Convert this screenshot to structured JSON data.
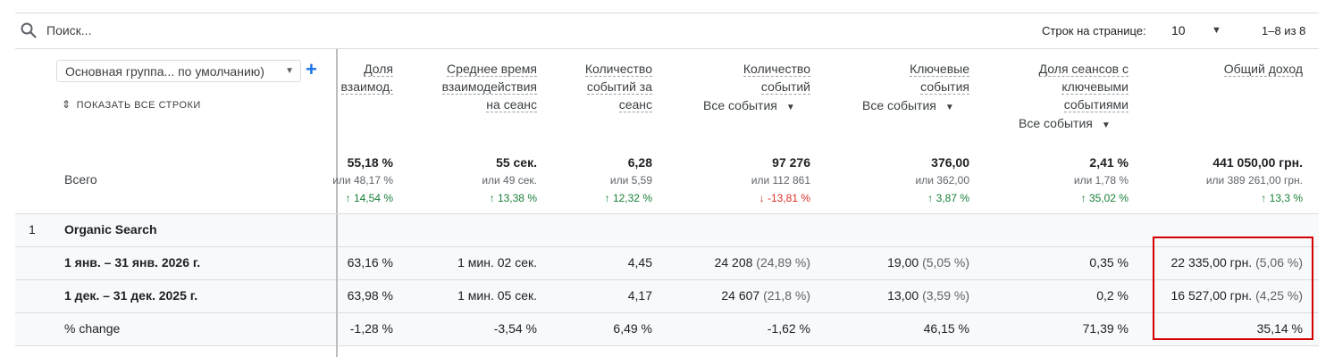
{
  "toolbar": {
    "search_placeholder": "Поиск...",
    "rows_per_page_label": "Строк на странице:",
    "rows_per_page_value": "10",
    "pagination": "1–8 из 8"
  },
  "dimension": {
    "selector_label": "Основная группа... по умолчанию)",
    "show_all_rows": "ПОКАЗАТЬ ВСЕ СТРОКИ",
    "total_label": "Всего"
  },
  "columns": [
    {
      "header": [
        "Доля",
        "взаимод."
      ],
      "event_select": "",
      "total": "55,18 %",
      "prev": "или 48,17 %",
      "delta": "14,54 %",
      "delta_dir": "up"
    },
    {
      "header": [
        "Среднее время",
        "взаимодействия",
        "на сеанс"
      ],
      "event_select": "",
      "total": "55 сек.",
      "prev": "или 49 сек.",
      "delta": "13,38 %",
      "delta_dir": "up"
    },
    {
      "header": [
        "Количество",
        "событий за",
        "сеанс"
      ],
      "event_select": "",
      "total": "6,28",
      "prev": "или 5,59",
      "delta": "12,32 %",
      "delta_dir": "up"
    },
    {
      "header": [
        "Количество",
        "событий"
      ],
      "event_select": "Все события",
      "total": "97 276",
      "prev": "или 112 861",
      "delta": "-13,81 %",
      "delta_dir": "down"
    },
    {
      "header": [
        "Ключевые",
        "события"
      ],
      "event_select": "Все события",
      "total": "376,00",
      "prev": "или 362,00",
      "delta": "3,87 %",
      "delta_dir": "up"
    },
    {
      "header": [
        "Доля сеансов с",
        "ключевыми",
        "событиями"
      ],
      "event_select": "Все события",
      "total": "2,41 %",
      "prev": "или 1,78 %",
      "delta": "35,02 %",
      "delta_dir": "up"
    },
    {
      "header": [
        "Общий доход"
      ],
      "event_select": "",
      "total": "441 050,00 грн.",
      "prev": "или 389 261,00 грн.",
      "delta": "13,3 %",
      "delta_dir": "up"
    }
  ],
  "rows": [
    {
      "num": "1",
      "label": "Organic Search",
      "cells": [
        {
          "v": "",
          "p": ""
        },
        {
          "v": "",
          "p": ""
        },
        {
          "v": "",
          "p": ""
        },
        {
          "v": "",
          "p": ""
        },
        {
          "v": "",
          "p": ""
        },
        {
          "v": "",
          "p": ""
        },
        {
          "v": "",
          "p": ""
        }
      ]
    },
    {
      "num": "",
      "label": "1 янв. – 31 янв. 2026 г.",
      "cells": [
        {
          "v": "63,16 %",
          "p": ""
        },
        {
          "v": "1 мин. 02 сек.",
          "p": ""
        },
        {
          "v": "4,45",
          "p": ""
        },
        {
          "v": "24 208 ",
          "p": "(24,89 %)"
        },
        {
          "v": "19,00 ",
          "p": "(5,05 %)"
        },
        {
          "v": "0,35 %",
          "p": ""
        },
        {
          "v": "22 335,00 грн. ",
          "p": "(5,06 %)"
        }
      ]
    },
    {
      "num": "",
      "label": "1 дек. – 31 дек. 2025 г.",
      "cells": [
        {
          "v": "63,98 %",
          "p": ""
        },
        {
          "v": "1 мин. 05 сек.",
          "p": ""
        },
        {
          "v": "4,17",
          "p": ""
        },
        {
          "v": "24 607 ",
          "p": "(21,8 %)"
        },
        {
          "v": "13,00 ",
          "p": "(3,59 %)"
        },
        {
          "v": "0,2 %",
          "p": ""
        },
        {
          "v": "16 527,00 грн. ",
          "p": "(4,25 %)"
        }
      ]
    },
    {
      "num": "",
      "label": "% change",
      "cells": [
        {
          "v": "-1,28 %",
          "p": ""
        },
        {
          "v": "-3,54 %",
          "p": ""
        },
        {
          "v": "6,49 %",
          "p": ""
        },
        {
          "v": "-1,62 %",
          "p": ""
        },
        {
          "v": "46,15 %",
          "p": ""
        },
        {
          "v": "71,39 %",
          "p": ""
        },
        {
          "v": "35,14 %",
          "p": ""
        }
      ]
    }
  ],
  "icons": {
    "search": "search-icon",
    "dropdown": "chevron-down-icon",
    "add": "plus-icon",
    "expand": "unfold-icon"
  },
  "colors": {
    "accent": "#1a73e8",
    "up": "#188038",
    "down": "#d93025",
    "highlight": "#d50000"
  }
}
